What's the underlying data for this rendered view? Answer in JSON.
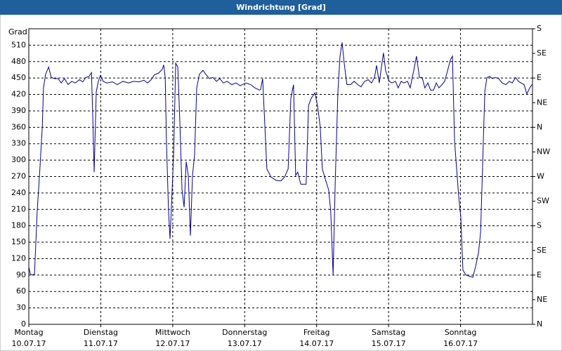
{
  "chart_data": {
    "type": "line",
    "title": "Windrichtung [Grad]",
    "y_label": "Grad",
    "xlim": [
      0,
      168
    ],
    "xticks": [
      {
        "value": 0,
        "label": "Montag",
        "date": "10.07.17"
      },
      {
        "value": 24,
        "label": "Dienstag",
        "date": "11.07.17"
      },
      {
        "value": 48,
        "label": "Mittwoch",
        "date": "12.07.17"
      },
      {
        "value": 72,
        "label": "Donnerstag",
        "date": "13.07.17"
      },
      {
        "value": 96,
        "label": "Freitag",
        "date": "14.07.17"
      },
      {
        "value": 120,
        "label": "Samstag",
        "date": "15.07.17"
      },
      {
        "value": 144,
        "label": "Sonntag",
        "date": "16.07.17"
      }
    ],
    "ylim": [
      0,
      540
    ],
    "yticks": [
      0,
      30,
      60,
      90,
      120,
      150,
      180,
      210,
      240,
      270,
      300,
      330,
      360,
      390,
      420,
      450,
      480,
      510
    ],
    "y2lim": [
      0,
      540
    ],
    "y2ticks": [
      {
        "value": 0,
        "label": "N"
      },
      {
        "value": 45,
        "label": "NE"
      },
      {
        "value": 90,
        "label": "E"
      },
      {
        "value": 135,
        "label": "SE"
      },
      {
        "value": 180,
        "label": "S"
      },
      {
        "value": 225,
        "label": "SW"
      },
      {
        "value": 270,
        "label": "W"
      },
      {
        "value": 315,
        "label": "NW"
      },
      {
        "value": 360,
        "label": "N"
      },
      {
        "value": 405,
        "label": "NE"
      },
      {
        "value": 450,
        "label": "E"
      },
      {
        "value": 495,
        "label": "SE"
      },
      {
        "value": 540,
        "label": "S"
      }
    ],
    "grid": true,
    "x": [
      0,
      0.5,
      1.2,
      1.9,
      2.8,
      3.7,
      4.5,
      4.9,
      5.6,
      6.6,
      7.5,
      8.7,
      9.8,
      10.8,
      11.9,
      13.1,
      14.3,
      15.5,
      16.9,
      18.0,
      19.0,
      20.1,
      20.9,
      21.3,
      21.8,
      22.5,
      23.2,
      23.9,
      24.8,
      26.0,
      27.9,
      29.5,
      31.4,
      33.3,
      34.9,
      36.8,
      38.4,
      39.6,
      40.8,
      41.9,
      43.3,
      44.5,
      45.0,
      45.5,
      45.9,
      46.6,
      47.1,
      47.6,
      48.3,
      49.0,
      49.7,
      50.4,
      51.1,
      51.8,
      52.5,
      53.2,
      53.9,
      54.6,
      55.3,
      56.0,
      56.9,
      58.1,
      59.0,
      60.2,
      61.4,
      62.6,
      63.7,
      64.9,
      66.1,
      67.7,
      69.1,
      70.5,
      72.4,
      74.0,
      75.4,
      76.9,
      77.3,
      78.0,
      78.7,
      79.4,
      80.8,
      82.5,
      84.1,
      85.3,
      86.5,
      87.4,
      88.3,
      89.0,
      89.7,
      90.7,
      91.8,
      92.5,
      93.3,
      94.2,
      95.4,
      96.3,
      97.2,
      97.9,
      98.9,
      100.0,
      100.7,
      101.5,
      102.2,
      103.1,
      103.8,
      104.5,
      105.2,
      106.1,
      107.3,
      108.5,
      109.7,
      110.8,
      112.0,
      113.2,
      114.3,
      115.3,
      116.0,
      116.9,
      117.6,
      118.3,
      119.0,
      120.2,
      121.1,
      122.3,
      123.2,
      124.2,
      125.1,
      126.3,
      127.2,
      128.4,
      129.3,
      130.3,
      131.2,
      132.1,
      133.1,
      134.0,
      135.0,
      135.9,
      136.8,
      137.8,
      138.7,
      139.7,
      140.6,
      141.3,
      142.0,
      142.7,
      143.4,
      144.1,
      144.8,
      145.8,
      146.9,
      148.1,
      149.0,
      150.0,
      150.7,
      151.4,
      152.1,
      152.8,
      153.7,
      154.6,
      155.6,
      156.7,
      157.9,
      159.1,
      160.3,
      161.2,
      162.4,
      163.3,
      164.2,
      165.2,
      166.1,
      167.1,
      167.8
    ],
    "series": [
      {
        "color": "#0000a0",
        "values": [
          105,
          92,
          90,
          92,
          207,
          284,
          361,
          432,
          457,
          470,
          451,
          449,
          449,
          441,
          449,
          438,
          444,
          441,
          447,
          443,
          451,
          453,
          460,
          387,
          278,
          425,
          444,
          455,
          444,
          441,
          443,
          438,
          444,
          441,
          444,
          443,
          446,
          441,
          447,
          456,
          459,
          466,
          474,
          451,
          336,
          207,
          156,
          220,
          310,
          477,
          470,
          367,
          246,
          214,
          297,
          272,
          162,
          272,
          310,
          432,
          457,
          464,
          457,
          449,
          451,
          444,
          449,
          441,
          444,
          438,
          441,
          436,
          441,
          438,
          432,
          428,
          429,
          449,
          367,
          284,
          269,
          263,
          262,
          269,
          284,
          413,
          438,
          272,
          278,
          256,
          256,
          256,
          400,
          413,
          423,
          400,
          361,
          284,
          265,
          246,
          207,
          90,
          259,
          425,
          490,
          515,
          477,
          438,
          438,
          444,
          438,
          434,
          444,
          447,
          441,
          451,
          473,
          441,
          470,
          496,
          464,
          444,
          441,
          444,
          432,
          444,
          441,
          444,
          432,
          464,
          490,
          451,
          451,
          432,
          441,
          428,
          428,
          441,
          432,
          438,
          444,
          464,
          483,
          490,
          336,
          284,
          233,
          195,
          99,
          90,
          88,
          86,
          105,
          131,
          169,
          297,
          425,
          451,
          453,
          449,
          451,
          449,
          441,
          438,
          444,
          441,
          451,
          444,
          441,
          438,
          421,
          432,
          438
        ]
      }
    ]
  }
}
